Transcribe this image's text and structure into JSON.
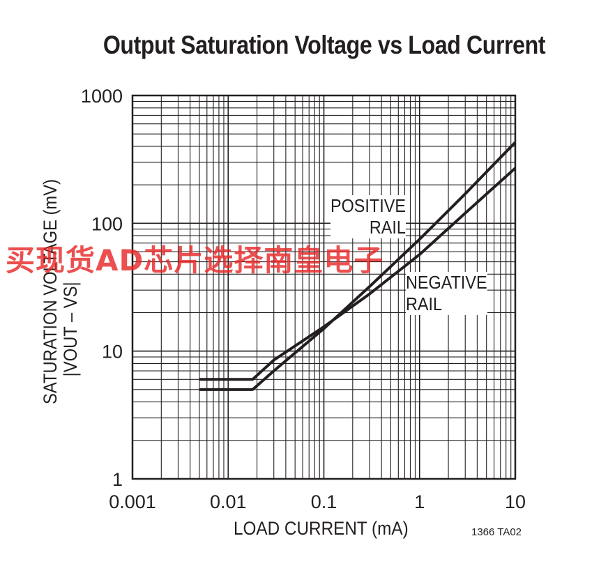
{
  "title": "Output Saturation Voltage vs Load Current",
  "chart_data": {
    "type": "line",
    "title": "Output Saturation Voltage vs Load Current",
    "xlabel": "LOAD CURRENT (mA)",
    "ylabel": "SATURATION VOLTAGE (mV)",
    "ylabel_line2": "|VOUT – VS|",
    "x_scale": "log",
    "y_scale": "log",
    "xlim": [
      0.001,
      10
    ],
    "ylim": [
      1,
      1000
    ],
    "x_tick_labels": [
      "0.001",
      "0.01",
      "0.1",
      "1",
      "10"
    ],
    "y_tick_labels": [
      "1",
      "10",
      "100",
      "1000"
    ],
    "grid": true,
    "series": [
      {
        "name": "POSITIVE RAIL",
        "x": [
          0.005,
          0.018,
          0.03,
          0.1,
          0.3,
          1,
          3,
          10
        ],
        "y": [
          5,
          5,
          7,
          15,
          32,
          75,
          170,
          430
        ]
      },
      {
        "name": "NEGATIVE RAIL",
        "x": [
          0.005,
          0.018,
          0.03,
          0.1,
          0.3,
          1,
          3,
          10
        ],
        "y": [
          6,
          6,
          8.5,
          15.5,
          28,
          57,
          120,
          270
        ]
      }
    ],
    "annotations": [
      {
        "lines": [
          "POSITIVE",
          "RAIL"
        ]
      },
      {
        "lines": [
          "NEGATIVE",
          "RAIL"
        ]
      }
    ]
  },
  "part_number": "1366 TA02",
  "watermark": "买现货AD芯片选择南皇电子"
}
